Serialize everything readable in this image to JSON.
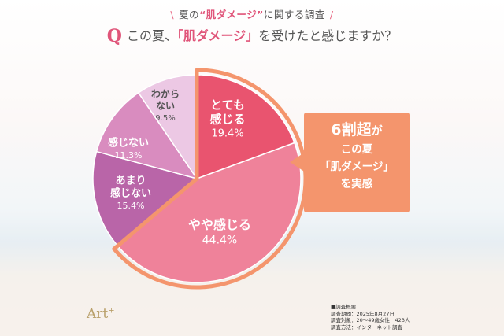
{
  "header": {
    "slash_left": "\\",
    "text_prefix": "夏の",
    "text_accent": "“肌ダメージ”",
    "text_suffix": "に関する調査",
    "slash_right": "/"
  },
  "question": {
    "mark": "Q",
    "prefix": "この夏、",
    "accent": "「肌ダメージ」",
    "suffix": "を受けたと感じますか？"
  },
  "colors": {
    "totemo": "#e9546f",
    "yaya": "#ef829a",
    "amari": "#b965a8",
    "kanjinai": "#d98cbf",
    "wakaranai": "#ecc8e4",
    "accent": "#e0557a",
    "callout": "#f4956d"
  },
  "chart_data": {
    "type": "pie",
    "slices": [
      {
        "label": "とても感じる",
        "lines": [
          "とても",
          "感じる"
        ],
        "value": 19.4,
        "value_text": "19.4%",
        "color": "#e9546f",
        "highlighted": true
      },
      {
        "label": "やや感じる",
        "lines": [
          "やや感じる"
        ],
        "value": 44.4,
        "value_text": "44.4%",
        "color": "#ef829a",
        "highlighted": true
      },
      {
        "label": "あまり感じない",
        "lines": [
          "あまり",
          "感じない"
        ],
        "value": 15.4,
        "value_text": "15.4%",
        "color": "#b965a8",
        "highlighted": false
      },
      {
        "label": "感じない",
        "lines": [
          "感じない"
        ],
        "value": 11.3,
        "value_text": "11.3%",
        "color": "#d98cbf",
        "highlighted": false
      },
      {
        "label": "わからない",
        "lines": [
          "わから",
          "ない"
        ],
        "value": 9.5,
        "value_text": "9.5%",
        "color": "#ecc8e4",
        "highlighted": false
      }
    ],
    "start": "12 o'clock, clockwise"
  },
  "callout": {
    "big": "6割超",
    "big_suffix": "が",
    "line1": "この夏",
    "line2": "「肌ダメージ」",
    "line3": "を実感"
  },
  "survey": {
    "title": "■調査概要",
    "period": "調査期間：2025年8月27日",
    "target": "調査対象：20〜49歳女性　423人",
    "method": "調査方法：インターネット調査"
  },
  "logo": {
    "text": "Art",
    "sup": "+"
  }
}
